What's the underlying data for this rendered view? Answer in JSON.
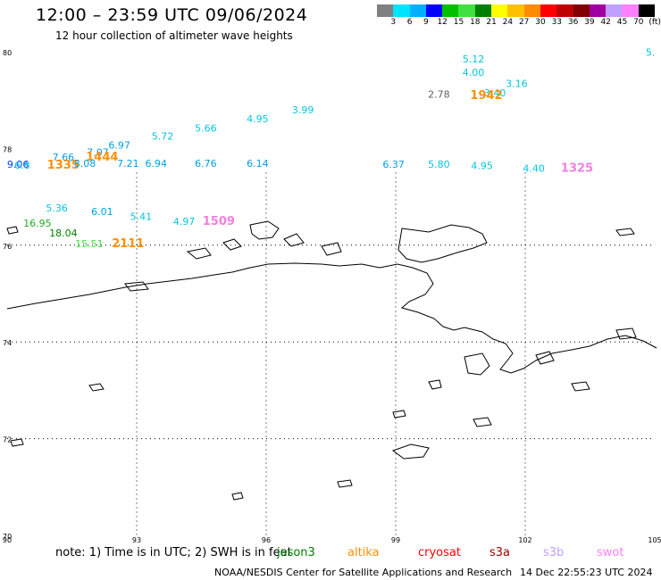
{
  "header": {
    "title": "12:00 – 23:59 UTC 09/06/2024",
    "subtitle": "12 hour collection of altimeter wave heights"
  },
  "color_scale": {
    "unit": "(ft)",
    "colors": [
      "#808080",
      "#00e5ff",
      "#00b0ff",
      "#0000ff",
      "#00c000",
      "#40e040",
      "#008000",
      "#ffff00",
      "#ffc000",
      "#ff8c00",
      "#ff0000",
      "#c00000",
      "#800000",
      "#a000a0",
      "#c0a0ff",
      "#ff80ff",
      "#000000"
    ],
    "ticks": [
      "3",
      "6",
      "9",
      "12",
      "15",
      "18",
      "21",
      "24",
      "27",
      "30",
      "33",
      "36",
      "39",
      "42",
      "45",
      "70"
    ]
  },
  "axes": {
    "lat_labels": [
      "80",
      "78",
      "76",
      "74",
      "72",
      "70"
    ],
    "lon_labels": [
      "90",
      "93",
      "96",
      "99",
      "102",
      "105"
    ]
  },
  "observations": [
    {
      "text": "5.12",
      "color": "#00c8e0",
      "lon": 100.8,
      "lat": 79.78
    },
    {
      "text": "5.",
      "color": "#00c8e0",
      "lon": 104.9,
      "lat": 79.92
    },
    {
      "text": "4.00",
      "color": "#00c8e0",
      "lon": 100.8,
      "lat": 79.5
    },
    {
      "text": "3.16",
      "color": "#00c8e0",
      "lon": 101.8,
      "lat": 79.27
    },
    {
      "text": "2.78",
      "color": "#606060",
      "lon": 100.0,
      "lat": 79.05
    },
    {
      "text": "3.40",
      "color": "#00c8e0",
      "lon": 101.3,
      "lat": 79.08
    },
    {
      "text": "1942",
      "color": "#ff9000",
      "lon": 101.1,
      "lat": 79.02
    },
    {
      "text": "3.99",
      "color": "#00c8e0",
      "lon": 96.85,
      "lat": 78.73
    },
    {
      "text": "4.95",
      "color": "#00c8e0",
      "lon": 95.8,
      "lat": 78.54
    },
    {
      "text": "5.66",
      "color": "#00c8e0",
      "lon": 94.6,
      "lat": 78.35
    },
    {
      "text": "5.72",
      "color": "#00c8e0",
      "lon": 93.6,
      "lat": 78.18
    },
    {
      "text": "6.97",
      "color": "#00a0e0",
      "lon": 92.6,
      "lat": 78.0
    },
    {
      "text": "7.07",
      "color": "#00a0e0",
      "lon": 92.1,
      "lat": 77.85
    },
    {
      "text": "7.66",
      "color": "#00a0e0",
      "lon": 91.3,
      "lat": 77.75
    },
    {
      "text": "1444",
      "color": "#ff9000",
      "lon": 92.2,
      "lat": 77.75
    },
    {
      "text": "9.06",
      "color": "#0040ff",
      "lon": 90.25,
      "lat": 77.6
    },
    {
      "text": "6.8",
      "color": "#00c8e0",
      "lon": 90.35,
      "lat": 77.58
    },
    {
      "text": "1335",
      "color": "#ff9000",
      "lon": 91.3,
      "lat": 77.58
    },
    {
      "text": "8.08",
      "color": "#00a0e0",
      "lon": 91.8,
      "lat": 77.62
    },
    {
      "text": "7.21",
      "color": "#00a0e0",
      "lon": 92.8,
      "lat": 77.62
    },
    {
      "text": "6.94",
      "color": "#00a0e0",
      "lon": 93.45,
      "lat": 77.62
    },
    {
      "text": "6.76",
      "color": "#00a0e0",
      "lon": 94.6,
      "lat": 77.62
    },
    {
      "text": "6.14",
      "color": "#00a0e0",
      "lon": 95.8,
      "lat": 77.62
    },
    {
      "text": "6.37",
      "color": "#00a0e0",
      "lon": 98.95,
      "lat": 77.6
    },
    {
      "text": "5.80",
      "color": "#00c8e0",
      "lon": 100.0,
      "lat": 77.6
    },
    {
      "text": "4.95",
      "color": "#00c8e0",
      "lon": 101.0,
      "lat": 77.57
    },
    {
      "text": "4.40",
      "color": "#00c8e0",
      "lon": 102.2,
      "lat": 77.52
    },
    {
      "text": "1325",
      "color": "#f080e0",
      "lon": 103.2,
      "lat": 77.52
    },
    {
      "text": "5.36",
      "color": "#00c8e0",
      "lon": 91.15,
      "lat": 76.7
    },
    {
      "text": "6.01",
      "color": "#00a0e0",
      "lon": 92.2,
      "lat": 76.62
    },
    {
      "text": "5.41",
      "color": "#00c8e0",
      "lon": 93.1,
      "lat": 76.52
    },
    {
      "text": "4.97",
      "color": "#00c8e0",
      "lon": 94.1,
      "lat": 76.42
    },
    {
      "text": "1509",
      "color": "#f080e0",
      "lon": 94.9,
      "lat": 76.42
    },
    {
      "text": "16.95",
      "color": "#20b020",
      "lon": 90.7,
      "lat": 76.38
    },
    {
      "text": "18.04",
      "color": "#008000",
      "lon": 91.3,
      "lat": 76.18
    },
    {
      "text": "15.51",
      "color": "#40e040",
      "lon": 91.9,
      "lat": 75.96
    },
    {
      "text": "2111",
      "color": "#ff9000",
      "lon": 92.8,
      "lat": 75.96
    }
  ],
  "footer": {
    "note": "note:  1) Time is in UTC;  2) SWH is in feet",
    "satellites": [
      {
        "name": "jason3",
        "color": "#008000"
      },
      {
        "name": "altika",
        "color": "#ff9000"
      },
      {
        "name": "cryosat",
        "color": "#ff0000"
      },
      {
        "name": "s3a",
        "color": "#a00000"
      },
      {
        "name": "s3b",
        "color": "#c0a0ff"
      },
      {
        "name": "swot",
        "color": "#ff80ff"
      }
    ],
    "credit": "NOAA/NESDIS Center for Satellite Applications and Research",
    "timestamp": "14 Dec 22:55:23 UTC 2024"
  }
}
